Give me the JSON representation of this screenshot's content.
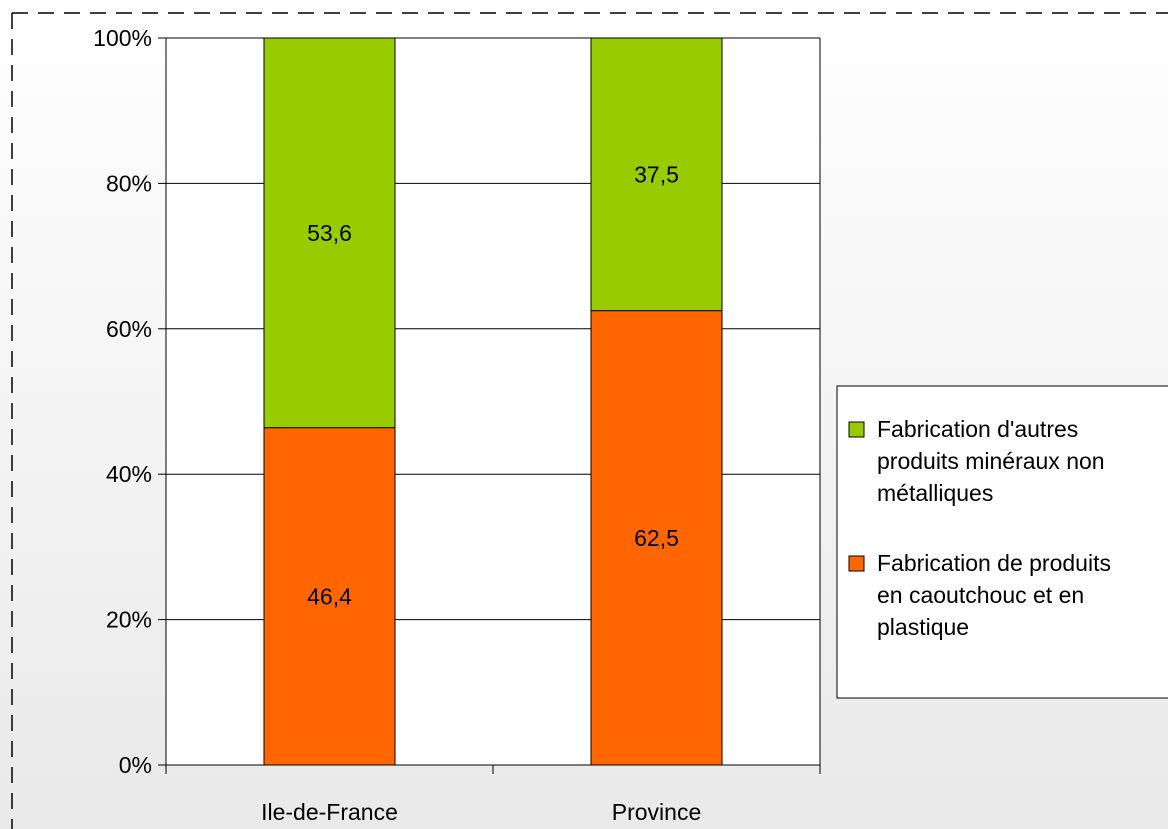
{
  "chart_data": {
    "type": "bar",
    "stacked": true,
    "normalized_percent": true,
    "categories": [
      "Ile-de-France",
      "Province"
    ],
    "series": [
      {
        "name": "Fabrication de produits en caoutchouc et en plastique",
        "values": [
          46.4,
          62.5
        ],
        "labels": [
          "46,4",
          "62,5"
        ],
        "color": "#ff6600"
      },
      {
        "name": "Fabrication d'autres produits minéraux non métalliques",
        "values": [
          53.6,
          37.5
        ],
        "labels": [
          "53,6",
          "37,5"
        ],
        "color": "#99cc00"
      }
    ],
    "yticks": [
      "0%",
      "20%",
      "40%",
      "60%",
      "80%",
      "100%"
    ],
    "ylim": [
      0,
      100
    ],
    "grid": true,
    "legend": {
      "position": "right",
      "entries": [
        {
          "lines": [
            "Fabrication d'autres",
            "produits minéraux non",
            "métalliques"
          ],
          "color": "#99cc00"
        },
        {
          "lines": [
            "Fabrication de produits",
            "en caoutchouc et en",
            "plastique"
          ],
          "color": "#ff6600"
        }
      ]
    }
  }
}
